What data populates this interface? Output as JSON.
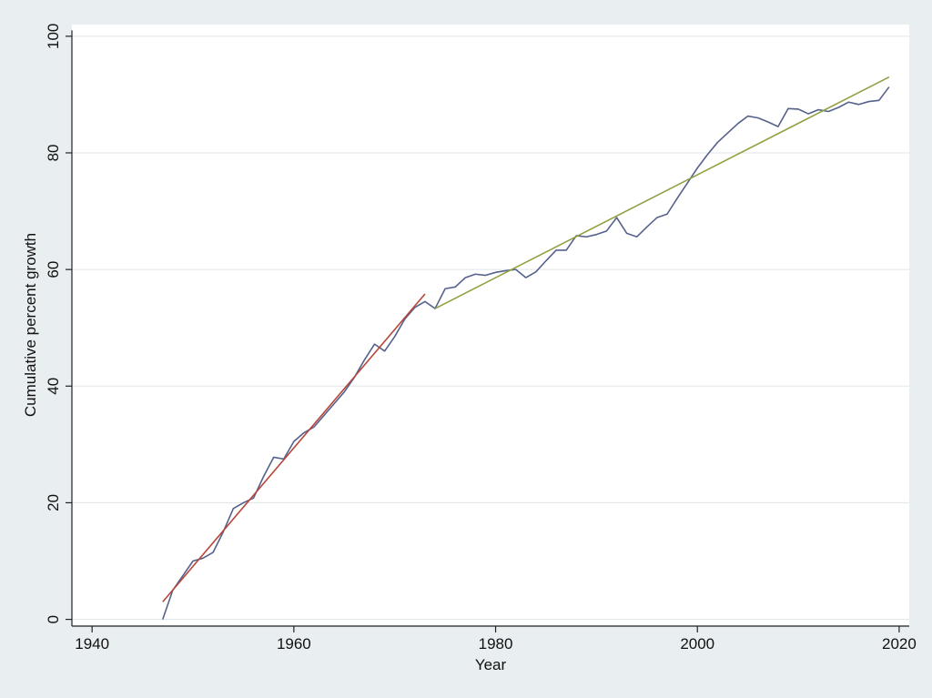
{
  "chart_data": {
    "type": "line",
    "xlabel": "Year",
    "ylabel": "Cumulative percent growth",
    "xlim": [
      1938,
      2021
    ],
    "ylim": [
      -1,
      102
    ],
    "xticks": [
      1940,
      1960,
      1980,
      2000,
      2020
    ],
    "yticks": [
      0,
      20,
      40,
      60,
      80,
      100
    ],
    "grid": "horizontal",
    "colors": {
      "series": "#56618c",
      "fit1": "#b5473a",
      "fit2": "#8fa141",
      "background": "#e9eef1",
      "plot_bg": "#ffffff"
    },
    "series": [
      {
        "x": [
          1947,
          1948,
          1949,
          1950,
          1951,
          1952,
          1953,
          1954,
          1955,
          1956,
          1957,
          1958,
          1959,
          1960,
          1961,
          1962,
          1963,
          1964,
          1965,
          1966,
          1967,
          1968,
          1969,
          1970,
          1971,
          1972,
          1973,
          1974,
          1975,
          1976,
          1977,
          1978,
          1979,
          1980,
          1981,
          1982,
          1983,
          1984,
          1985,
          1986,
          1987,
          1988,
          1989,
          1990,
          1991,
          1992,
          1993,
          1994,
          1995,
          1996,
          1997,
          1998,
          1999,
          2000,
          2001,
          2002,
          2003,
          2004,
          2005,
          2006,
          2007,
          2008,
          2009,
          2010,
          2011,
          2012,
          2013,
          2014,
          2015,
          2016,
          2017,
          2018,
          2019
        ],
        "values": [
          0,
          5,
          7.5,
          10,
          10.5,
          11.5,
          15,
          19,
          20,
          20.8,
          24.5,
          27.8,
          27.5,
          30.5,
          32,
          33,
          35,
          37,
          39,
          41.5,
          44.5,
          47.2,
          46,
          48.5,
          51.5,
          53.5,
          54.5,
          53.3,
          56.7,
          57,
          58.6,
          59.2,
          59,
          59.5,
          59.8,
          60,
          58.6,
          59.6,
          61.5,
          63.3,
          63.3,
          65.8,
          65.6,
          66,
          66.6,
          68.9,
          66.2,
          65.6,
          67.3,
          68.9,
          69.5,
          72.2,
          74.8,
          77.4,
          79.7,
          81.8,
          83.4,
          85,
          86.3,
          86,
          85.3,
          84.5,
          87.6,
          87.5,
          86.7,
          87.4,
          87.1,
          87.8,
          88.7,
          88.3,
          88.8,
          89,
          91.3
        ]
      }
    ],
    "fit_lines": [
      {
        "x": [
          1947,
          1973
        ],
        "values": [
          3,
          55.8
        ]
      },
      {
        "x": [
          1974,
          2019
        ],
        "values": [
          53.3,
          93
        ]
      }
    ]
  }
}
